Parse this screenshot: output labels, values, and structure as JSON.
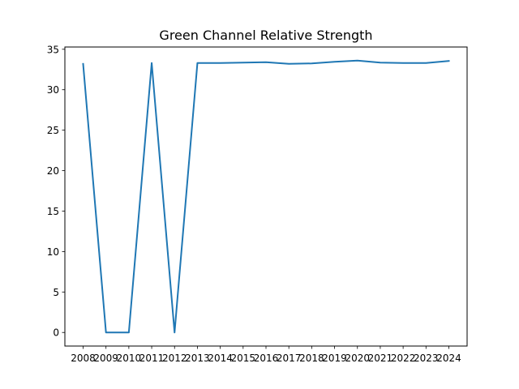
{
  "chart_data": {
    "type": "line",
    "title": "Green Channel Relative Strength",
    "xlabel": "",
    "ylabel": "",
    "x": [
      "2008",
      "2009",
      "2010",
      "2011",
      "2012",
      "2013",
      "2014",
      "2015",
      "2016",
      "2017",
      "2018",
      "2019",
      "2020",
      "2021",
      "2022",
      "2023",
      "2024"
    ],
    "series": [
      {
        "values": [
          33.2,
          0,
          0,
          33.3,
          0,
          33.3,
          33.3,
          33.35,
          33.4,
          33.2,
          33.25,
          33.45,
          33.6,
          33.35,
          33.3,
          33.3,
          33.55
        ]
      }
    ],
    "yticks": [
      0,
      5,
      10,
      15,
      20,
      25,
      30,
      35
    ],
    "ylim": [
      -1.68,
      35.28
    ],
    "grid": false,
    "legend": "none",
    "colors": {
      "line": "#1f77b4",
      "axes": "#000000"
    }
  }
}
